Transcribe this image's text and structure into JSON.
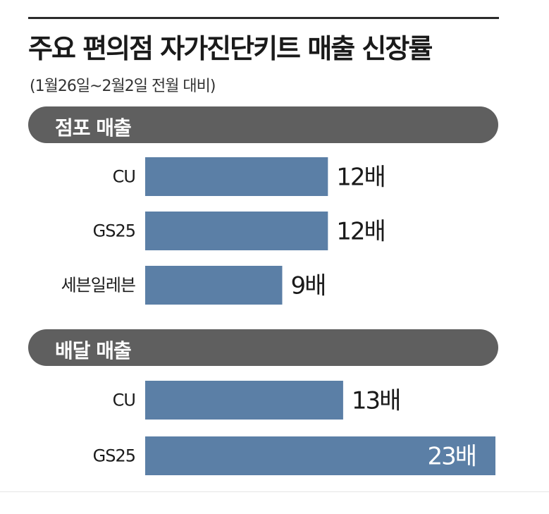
{
  "title": "주요 편의점 자가진단키트 매출 신장률",
  "subtitle": "(1월26일~2월2일 전월 대비)",
  "colors": {
    "bar": "#5b7fa6",
    "section_pill": "#5f5f5f",
    "text": "#1a1a1a"
  },
  "chart_data": [
    {
      "type": "bar",
      "orientation": "horizontal",
      "section_label": "점포 매출",
      "categories": [
        "CU",
        "GS25",
        "세븐일레븐"
      ],
      "values": [
        12,
        12,
        9
      ],
      "value_labels": [
        "12배",
        "12배",
        "9배"
      ],
      "unit": "배",
      "xlim": [
        0,
        23
      ]
    },
    {
      "type": "bar",
      "orientation": "horizontal",
      "section_label": "배달 매출",
      "categories": [
        "CU",
        "GS25"
      ],
      "values": [
        13,
        23
      ],
      "value_labels": [
        "13배",
        "23배"
      ],
      "unit": "배",
      "xlim": [
        0,
        23
      ]
    }
  ]
}
